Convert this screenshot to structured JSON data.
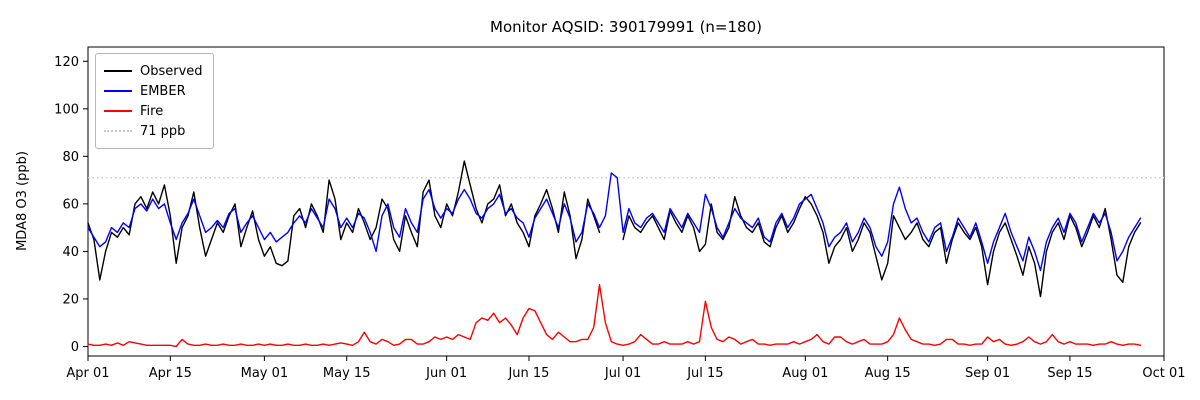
{
  "chart_data": {
    "type": "line",
    "title": "Monitor AQSID: 390179991 (n=180)",
    "xlabel": "",
    "ylabel": "MDA8 O3 (ppb)",
    "ylim": [
      -4,
      126
    ],
    "yticks": [
      0,
      20,
      40,
      60,
      80,
      100,
      120
    ],
    "x_total_days": 183,
    "xticks": [
      {
        "label": "Apr 01",
        "day": 0
      },
      {
        "label": "Apr 15",
        "day": 14
      },
      {
        "label": "May 01",
        "day": 30
      },
      {
        "label": "May 15",
        "day": 44
      },
      {
        "label": "Jun 01",
        "day": 61
      },
      {
        "label": "Jun 15",
        "day": 75
      },
      {
        "label": "Jul 01",
        "day": 91
      },
      {
        "label": "Jul 15",
        "day": 105
      },
      {
        "label": "Aug 01",
        "day": 122
      },
      {
        "label": "Aug 15",
        "day": 136
      },
      {
        "label": "Sep 01",
        "day": 153
      },
      {
        "label": "Sep 15",
        "day": 167
      },
      {
        "label": "Oct 01",
        "day": 183
      }
    ],
    "threshold": {
      "label": "71 ppb",
      "value": 71,
      "color": "#c8c8c8",
      "style": "dotted"
    },
    "legend_position": "upper left",
    "grid": false,
    "axis_color": "#000000",
    "series": [
      {
        "name": "Observed",
        "color": "#000000",
        "values": [
          52,
          45,
          28,
          40,
          48,
          46,
          50,
          47,
          60,
          63,
          58,
          65,
          60,
          68,
          55,
          35,
          50,
          55,
          65,
          50,
          38,
          45,
          52,
          48,
          55,
          60,
          42,
          50,
          57,
          45,
          38,
          42,
          35,
          34,
          36,
          55,
          58,
          50,
          60,
          55,
          48,
          70,
          62,
          45,
          52,
          48,
          58,
          52,
          45,
          50,
          62,
          58,
          45,
          40,
          55,
          48,
          42,
          65,
          70,
          55,
          50,
          60,
          55,
          65,
          78,
          68,
          58,
          52,
          60,
          62,
          68,
          55,
          60,
          52,
          48,
          42,
          55,
          60,
          66,
          58,
          48,
          65,
          55,
          37,
          45,
          62,
          55,
          48,
          null,
          null,
          null,
          45,
          55,
          50,
          48,
          52,
          55,
          50,
          45,
          57,
          52,
          48,
          55,
          50,
          40,
          43,
          60,
          48,
          45,
          50,
          63,
          55,
          50,
          48,
          52,
          44,
          42,
          50,
          55,
          48,
          52,
          58,
          63,
          60,
          55,
          48,
          35,
          42,
          45,
          50,
          40,
          45,
          52,
          48,
          38,
          28,
          35,
          55,
          50,
          45,
          48,
          52,
          45,
          42,
          48,
          50,
          35,
          45,
          52,
          48,
          45,
          50,
          42,
          26,
          40,
          48,
          52,
          45,
          38,
          30,
          42,
          35,
          21,
          40,
          48,
          52,
          45,
          55,
          50,
          42,
          48,
          55,
          50,
          58,
          45,
          30,
          27,
          42,
          48,
          52
        ]
      },
      {
        "name": "EMBER",
        "color": "#0000ff",
        "values": [
          50,
          46,
          42,
          44,
          50,
          48,
          52,
          50,
          58,
          60,
          57,
          62,
          58,
          60,
          52,
          45,
          52,
          56,
          62,
          55,
          48,
          50,
          53,
          50,
          56,
          58,
          48,
          52,
          55,
          50,
          45,
          48,
          44,
          46,
          48,
          52,
          55,
          52,
          58,
          54,
          50,
          62,
          58,
          50,
          54,
          50,
          56,
          54,
          48,
          40,
          55,
          60,
          50,
          46,
          58,
          52,
          48,
          62,
          66,
          58,
          54,
          58,
          56,
          62,
          66,
          62,
          56,
          54,
          58,
          60,
          64,
          56,
          58,
          54,
          52,
          46,
          54,
          58,
          62,
          56,
          50,
          60,
          54,
          44,
          48,
          60,
          56,
          50,
          55,
          73,
          71,
          48,
          58,
          52,
          50,
          54,
          56,
          52,
          48,
          58,
          54,
          50,
          56,
          52,
          48,
          64,
          58,
          50,
          46,
          52,
          58,
          54,
          52,
          50,
          54,
          46,
          44,
          52,
          56,
          50,
          54,
          60,
          62,
          64,
          58,
          52,
          42,
          46,
          48,
          52,
          44,
          48,
          54,
          50,
          42,
          38,
          44,
          60,
          67,
          58,
          52,
          54,
          48,
          44,
          50,
          52,
          40,
          46,
          54,
          50,
          46,
          52,
          44,
          35,
          44,
          50,
          56,
          48,
          42,
          36,
          46,
          40,
          32,
          44,
          50,
          54,
          48,
          56,
          52,
          44,
          50,
          56,
          52,
          56,
          48,
          36,
          40,
          46,
          50,
          54
        ]
      },
      {
        "name": "Fire",
        "color": "#ff0000",
        "values": [
          1,
          0.5,
          0.5,
          1,
          0.5,
          1.5,
          0.5,
          2,
          1.5,
          1,
          0.5,
          0.5,
          0.5,
          0.5,
          0.5,
          0,
          3,
          1,
          0.5,
          0.5,
          1,
          0.5,
          0.5,
          1,
          0.5,
          0.5,
          1,
          0.5,
          0.5,
          1,
          0.5,
          1,
          0.5,
          0.5,
          1,
          0.5,
          0.5,
          1,
          0.5,
          0.5,
          1,
          0.5,
          1,
          1.5,
          1,
          0.5,
          2,
          6,
          2,
          1,
          3,
          2,
          0.5,
          1,
          3,
          3,
          1,
          1,
          2,
          4,
          3,
          4,
          3,
          5,
          4,
          3,
          10,
          12,
          11,
          14,
          10,
          12,
          9,
          5,
          12,
          16,
          15,
          10,
          5,
          3,
          6,
          4,
          2,
          2,
          3,
          3,
          8,
          26,
          10,
          2,
          1,
          0.5,
          1,
          2,
          5,
          3,
          1,
          1,
          2,
          1,
          1,
          1,
          2,
          1,
          2,
          19,
          8,
          3,
          2,
          4,
          3,
          1,
          2,
          3,
          1,
          1,
          0.5,
          1,
          1,
          1,
          2,
          1,
          2,
          3,
          5,
          2,
          1,
          4,
          4,
          2,
          1,
          2,
          3,
          1,
          1,
          1,
          2,
          5,
          12,
          7,
          3,
          2,
          1,
          1,
          0.5,
          1,
          3,
          3,
          1,
          1,
          0.5,
          1,
          1,
          4,
          2,
          3,
          1,
          0.5,
          1,
          2,
          4,
          2,
          1,
          2,
          5,
          2,
          1,
          2,
          1,
          1,
          1,
          0.5,
          1,
          1,
          2,
          1,
          0.5,
          1,
          1,
          0.5
        ]
      }
    ]
  }
}
